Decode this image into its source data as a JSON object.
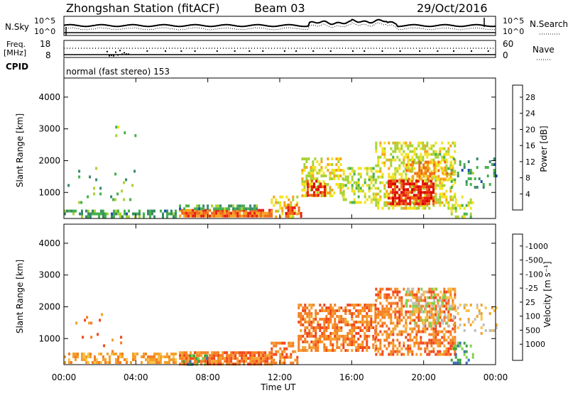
{
  "header": {
    "station": "Zhongshan Station (fitACF)",
    "beam": "Beam 03",
    "date": "29/Oct/2016"
  },
  "top_panels": {
    "nsky_label": "N.Sky",
    "nsky_ticks": [
      "10^5",
      "10^0"
    ],
    "nsearch_label": "N.Search",
    "nsearch_ticks": [
      "10^5",
      "10^0"
    ],
    "freq_label": "Freq.",
    "freq_unit": "[MHz]",
    "freq_ticks": [
      "18",
      "8"
    ],
    "nave_label": "Nave",
    "nave_ticks": [
      "60",
      "0"
    ],
    "cpid_label": "CPID",
    "cpid_text": "normal (fast stereo) 153"
  },
  "colors": {
    "frame": "#000000",
    "power_scale": [
      "#1f1fff",
      "#1f4fb0",
      "#3a8a6a",
      "#46b04a",
      "#a8d234",
      "#f2e21e",
      "#f7a21a",
      "#f06a14",
      "#e61e12",
      "#d80000"
    ],
    "velocity_scale": [
      "#e00000",
      "#f2461b",
      "#f57f22",
      "#f4a12b",
      "#f9c34a",
      "#bfbfbf",
      "#7fd24d",
      "#3fa23f",
      "#3b6fb6",
      "#2233c8"
    ]
  },
  "chart_data": [
    {
      "type": "heatmap",
      "name": "power",
      "ylabel": "Slant Range [km]",
      "xlabel": "",
      "x_ticks": [
        "00:00",
        "04:00",
        "08:00",
        "12:00",
        "16:00",
        "20:00",
        "00:00"
      ],
      "y_ticks": [
        1000,
        2000,
        3000,
        4000
      ],
      "xlim_hours": [
        0,
        24
      ],
      "ylim": [
        180,
        4600
      ],
      "colorbar": {
        "label": "Power [dB]",
        "ticks": [
          4,
          8,
          12,
          16,
          20,
          24,
          28
        ],
        "range": [
          0,
          31
        ]
      },
      "regions": [
        {
          "start": 0.0,
          "end": 6.2,
          "r0": 220,
          "r1": 460,
          "level": 9,
          "density": 0.55
        },
        {
          "start": 0.2,
          "end": 4.0,
          "r0": 600,
          "r1": 1800,
          "level": 10,
          "density": 0.05
        },
        {
          "start": 2.5,
          "end": 4.0,
          "r0": 2700,
          "r1": 3100,
          "level": 12,
          "density": 0.04
        },
        {
          "start": 6.4,
          "end": 11.5,
          "r0": 220,
          "r1": 480,
          "level": 24,
          "density": 0.92
        },
        {
          "start": 6.4,
          "end": 11.0,
          "r0": 480,
          "r1": 620,
          "level": 9,
          "density": 0.55
        },
        {
          "start": 11.5,
          "end": 13.0,
          "r0": 220,
          "r1": 900,
          "level": 18,
          "density": 0.5
        },
        {
          "start": 12.3,
          "end": 13.2,
          "r0": 220,
          "r1": 650,
          "level": 26,
          "density": 0.7
        },
        {
          "start": 13.2,
          "end": 15.5,
          "r0": 900,
          "r1": 2100,
          "level": 17,
          "density": 0.55
        },
        {
          "start": 13.5,
          "end": 14.5,
          "r0": 900,
          "r1": 1400,
          "level": 26,
          "density": 0.6
        },
        {
          "start": 15.5,
          "end": 17.3,
          "r0": 700,
          "r1": 1800,
          "level": 15,
          "density": 0.45
        },
        {
          "start": 17.3,
          "end": 21.8,
          "r0": 500,
          "r1": 2600,
          "level": 16,
          "density": 0.5
        },
        {
          "start": 18.0,
          "end": 20.5,
          "r0": 600,
          "r1": 1400,
          "level": 27,
          "density": 0.7
        },
        {
          "start": 19.0,
          "end": 21.5,
          "r0": 1400,
          "r1": 2000,
          "level": 21,
          "density": 0.45
        },
        {
          "start": 21.5,
          "end": 24.0,
          "r0": 1200,
          "r1": 2100,
          "level": 8,
          "density": 0.2
        },
        {
          "start": 21.5,
          "end": 22.8,
          "r0": 220,
          "r1": 900,
          "level": 14,
          "density": 0.3
        }
      ]
    },
    {
      "type": "heatmap",
      "name": "velocity",
      "ylabel": "Slant Range [km]",
      "xlabel": "Time UT",
      "x_ticks": [
        "00:00",
        "04:00",
        "08:00",
        "12:00",
        "16:00",
        "20:00",
        "00:00"
      ],
      "y_ticks": [
        1000,
        2000,
        3000,
        4000
      ],
      "xlim_hours": [
        0,
        24
      ],
      "ylim": [
        180,
        4600
      ],
      "colorbar": {
        "label": "Velocity [m s⁻¹]",
        "ticks": [
          "-1000",
          "-500",
          "-100",
          "-25",
          "25",
          "100",
          "500",
          "1000"
        ]
      },
      "regions": [
        {
          "start": 0.0,
          "end": 6.2,
          "r0": 220,
          "r1": 560,
          "level": 3,
          "density": 0.55
        },
        {
          "start": 0.4,
          "end": 4.0,
          "r0": 600,
          "r1": 1800,
          "level": 2,
          "density": 0.05
        },
        {
          "start": 6.4,
          "end": 11.5,
          "r0": 220,
          "r1": 600,
          "level": 2,
          "density": 0.88
        },
        {
          "start": 6.6,
          "end": 8.0,
          "r0": 220,
          "r1": 500,
          "level": 7,
          "density": 0.45
        },
        {
          "start": 11.5,
          "end": 13.0,
          "r0": 220,
          "r1": 900,
          "level": 2,
          "density": 0.55
        },
        {
          "start": 13.0,
          "end": 17.3,
          "r0": 600,
          "r1": 2100,
          "level": 2,
          "density": 0.6
        },
        {
          "start": 17.3,
          "end": 21.8,
          "r0": 500,
          "r1": 2600,
          "level": 2,
          "density": 0.55
        },
        {
          "start": 19.0,
          "end": 21.5,
          "r0": 1400,
          "r1": 2600,
          "level": 5,
          "density": 0.35
        },
        {
          "start": 21.5,
          "end": 24.0,
          "r0": 1200,
          "r1": 2100,
          "level": 4,
          "density": 0.2
        },
        {
          "start": 21.5,
          "end": 22.8,
          "r0": 220,
          "r1": 900,
          "level": 7,
          "density": 0.3
        }
      ]
    }
  ]
}
